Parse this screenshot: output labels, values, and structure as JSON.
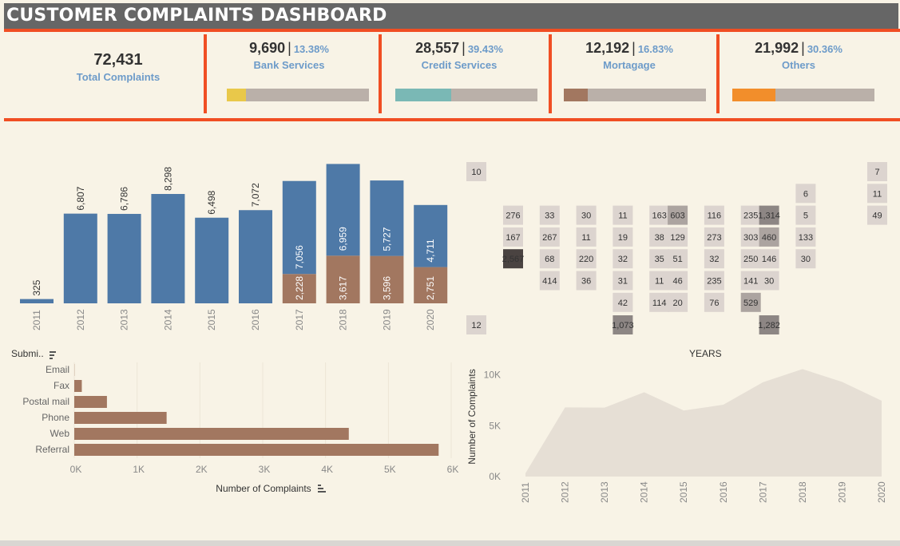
{
  "title": "CUSTOMER COMPLAINTS DASHBOARD",
  "kpis": {
    "total": {
      "value": "72,431",
      "label": "Total Complaints"
    },
    "items": [
      {
        "value": "9,690",
        "pct": "13.38%",
        "label": "Bank Services",
        "fraction": 0.1338,
        "color": "#e9c84a"
      },
      {
        "value": "28,557",
        "pct": "39.43%",
        "label": "Credit Services",
        "fraction": 0.3943,
        "color": "#7ab8b5"
      },
      {
        "value": "12,192",
        "pct": "16.83%",
        "label": "Mortagage",
        "fraction": 0.1683,
        "color": "#a27760"
      },
      {
        "value": "21,992",
        "pct": "30.36%",
        "label": "Others",
        "fraction": 0.3036,
        "color": "#f28e2b"
      }
    ],
    "separator": "|"
  },
  "colors": {
    "accent": "#f04e23",
    "blue": "#4e79a7",
    "brown": "#a27760",
    "area": "#e6dfd5"
  },
  "chart_data": [
    {
      "type": "bar",
      "categories": [
        "2011",
        "2012",
        "2013",
        "2014",
        "2015",
        "2016",
        "2017",
        "2018",
        "2019",
        "2020"
      ],
      "series": [
        {
          "values": [
            325,
            6807,
            6786,
            8298,
            6498,
            7072,
            7056,
            6959,
            5727,
            4711
          ]
        },
        {
          "values": [
            0,
            0,
            0,
            0,
            0,
            0,
            2228,
            3617,
            3596,
            2751
          ]
        }
      ],
      "labels_top": [
        "325",
        "6,807",
        "6,786",
        "8,298",
        "6,498",
        "7,072",
        "7,056",
        "6,959",
        "5,727",
        "4,711"
      ],
      "labels_bottom": [
        "",
        "",
        "",
        "",
        "",
        "",
        "2,228",
        "3,617",
        "3,596",
        "2,751"
      ],
      "ylim": [
        0,
        10600
      ]
    },
    {
      "type": "heatmap",
      "xlabel": "YEARS",
      "cells": [
        {
          "c": 0,
          "r": 0,
          "v": "10",
          "w": 10
        },
        {
          "c": 18,
          "r": 0,
          "v": "7",
          "w": 7
        },
        {
          "c": 17,
          "r": 1,
          "v": "6",
          "w": 6
        },
        {
          "c": 18,
          "r": 1,
          "v": "11",
          "w": 11
        },
        {
          "c": 1,
          "r": 2,
          "v": "276",
          "w": 276
        },
        {
          "c": 3,
          "r": 2,
          "v": "33",
          "w": 33
        },
        {
          "c": 5,
          "r": 2,
          "v": "30",
          "w": 30
        },
        {
          "c": 7,
          "r": 2,
          "v": "11",
          "w": 11
        },
        {
          "c": 9,
          "r": 2,
          "v": "163",
          "w": 163
        },
        {
          "c": 10,
          "r": 2,
          "v": "603",
          "w": 603
        },
        {
          "c": 12,
          "r": 2,
          "v": "116",
          "w": 116
        },
        {
          "c": 14,
          "r": 2,
          "v": "235",
          "w": 235
        },
        {
          "c": 15,
          "r": 2,
          "v": "1,314",
          "w": 1314
        },
        {
          "c": 17,
          "r": 2,
          "v": "5",
          "w": 5
        },
        {
          "c": 18,
          "r": 2,
          "v": "49",
          "w": 49
        },
        {
          "c": 1,
          "r": 3,
          "v": "167",
          "w": 167
        },
        {
          "c": 3,
          "r": 3,
          "v": "267",
          "w": 267
        },
        {
          "c": 5,
          "r": 3,
          "v": "11",
          "w": 11
        },
        {
          "c": 7,
          "r": 3,
          "v": "19",
          "w": 19
        },
        {
          "c": 9,
          "r": 3,
          "v": "38",
          "w": 38
        },
        {
          "c": 10,
          "r": 3,
          "v": "129",
          "w": 129
        },
        {
          "c": 12,
          "r": 3,
          "v": "273",
          "w": 273
        },
        {
          "c": 14,
          "r": 3,
          "v": "303",
          "w": 303
        },
        {
          "c": 15,
          "r": 3,
          "v": "460",
          "w": 460
        },
        {
          "c": 17,
          "r": 3,
          "v": "133",
          "w": 133
        },
        {
          "c": 1,
          "r": 4,
          "v": "2,567",
          "w": 2567
        },
        {
          "c": 3,
          "r": 4,
          "v": "68",
          "w": 68
        },
        {
          "c": 5,
          "r": 4,
          "v": "220",
          "w": 220
        },
        {
          "c": 7,
          "r": 4,
          "v": "32",
          "w": 32
        },
        {
          "c": 9,
          "r": 4,
          "v": "35",
          "w": 35
        },
        {
          "c": 10,
          "r": 4,
          "v": "51",
          "w": 51
        },
        {
          "c": 12,
          "r": 4,
          "v": "32",
          "w": 32
        },
        {
          "c": 14,
          "r": 4,
          "v": "250",
          "w": 250
        },
        {
          "c": 15,
          "r": 4,
          "v": "146",
          "w": 146
        },
        {
          "c": 17,
          "r": 4,
          "v": "30",
          "w": 30
        },
        {
          "c": 3,
          "r": 5,
          "v": "414",
          "w": 414
        },
        {
          "c": 5,
          "r": 5,
          "v": "36",
          "w": 36
        },
        {
          "c": 7,
          "r": 5,
          "v": "31",
          "w": 31
        },
        {
          "c": 9,
          "r": 5,
          "v": "11",
          "w": 11
        },
        {
          "c": 10,
          "r": 5,
          "v": "46",
          "w": 46
        },
        {
          "c": 12,
          "r": 5,
          "v": "235",
          "w": 235
        },
        {
          "c": 14,
          "r": 5,
          "v": "141",
          "w": 141
        },
        {
          "c": 15,
          "r": 5,
          "v": "30",
          "w": 30
        },
        {
          "c": 7,
          "r": 6,
          "v": "42",
          "w": 42
        },
        {
          "c": 9,
          "r": 6,
          "v": "114",
          "w": 114
        },
        {
          "c": 10,
          "r": 6,
          "v": "20",
          "w": 20
        },
        {
          "c": 12,
          "r": 6,
          "v": "76",
          "w": 76
        },
        {
          "c": 14,
          "r": 6,
          "v": "529",
          "w": 529
        },
        {
          "c": 0,
          "r": 7,
          "v": "12",
          "w": 12
        },
        {
          "c": 7,
          "r": 7,
          "v": "1,073",
          "w": 1073
        },
        {
          "c": 15,
          "r": 7,
          "v": "1,282",
          "w": 1282
        }
      ]
    },
    {
      "type": "bar",
      "orientation": "horizontal",
      "header": "Submi..",
      "categories": [
        "Email",
        "Fax",
        "Postal mail",
        "Phone",
        "Web",
        "Referral"
      ],
      "values": [
        3,
        120,
        520,
        1470,
        4370,
        5800
      ],
      "xlabel": "Number of Complaints",
      "ticks": [
        "0K",
        "1K",
        "2K",
        "3K",
        "4K",
        "5K",
        "6K"
      ],
      "xlim": [
        0,
        6000
      ]
    },
    {
      "type": "area",
      "x": [
        "2011",
        "2012",
        "2013",
        "2014",
        "2015",
        "2016",
        "2017",
        "2018",
        "2019",
        "2020"
      ],
      "values": [
        325,
        6807,
        6786,
        8298,
        6498,
        7072,
        9284,
        10576,
        9323,
        7462
      ],
      "ylabel": "Number of Complaints",
      "yticks": [
        "10K",
        "5K",
        "0K"
      ],
      "ylim": [
        0,
        11000
      ]
    }
  ]
}
